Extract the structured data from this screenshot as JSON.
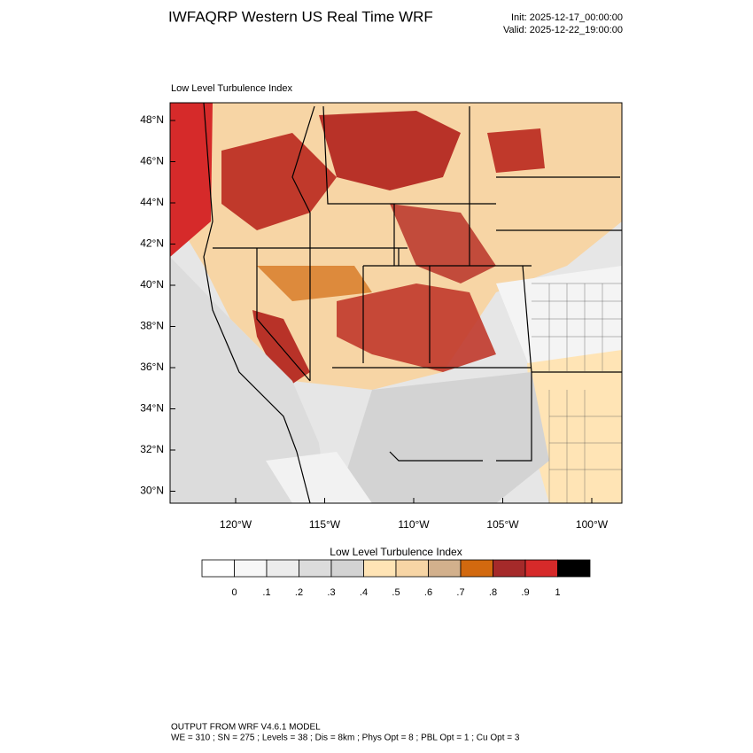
{
  "header": {
    "title": "IWFAQRP Western US Real Time WRF",
    "init": "Init: 2025-12-17_00:00:00",
    "valid": "Valid: 2025-12-22_19:00:00"
  },
  "map": {
    "subtitle": "Low Level Turbulence Index",
    "lat_labels": [
      "48°N",
      "46°N",
      "44°N",
      "42°N",
      "40°N",
      "38°N",
      "36°N",
      "34°N",
      "32°N",
      "30°N"
    ],
    "lon_labels": [
      "120°W",
      "115°W",
      "110°W",
      "105°W",
      "100°W"
    ]
  },
  "colorbar": {
    "title": "Low Level Turbulence Index",
    "colors": [
      "#ffffff",
      "#f7f7f7",
      "#ececec",
      "#dcdcdc",
      "#d3d3d3",
      "#ffe4b5",
      "#f7d5a5",
      "#d2b08c",
      "#d2690f",
      "#a52a2a",
      "#d62a2a",
      "#000000"
    ],
    "labels": [
      "0",
      ".1",
      ".2",
      ".3",
      ".4",
      ".5",
      ".6",
      ".7",
      ".8",
      ".9",
      "1"
    ]
  },
  "footer": {
    "line1": "OUTPUT FROM WRF V4.6.1 MODEL",
    "line2": "WE = 310 ; SN = 275 ; Levels = 38 ; Dis = 8km ; Phys Opt = 8 ; PBL Opt = 1 ; Cu Opt = 3"
  }
}
